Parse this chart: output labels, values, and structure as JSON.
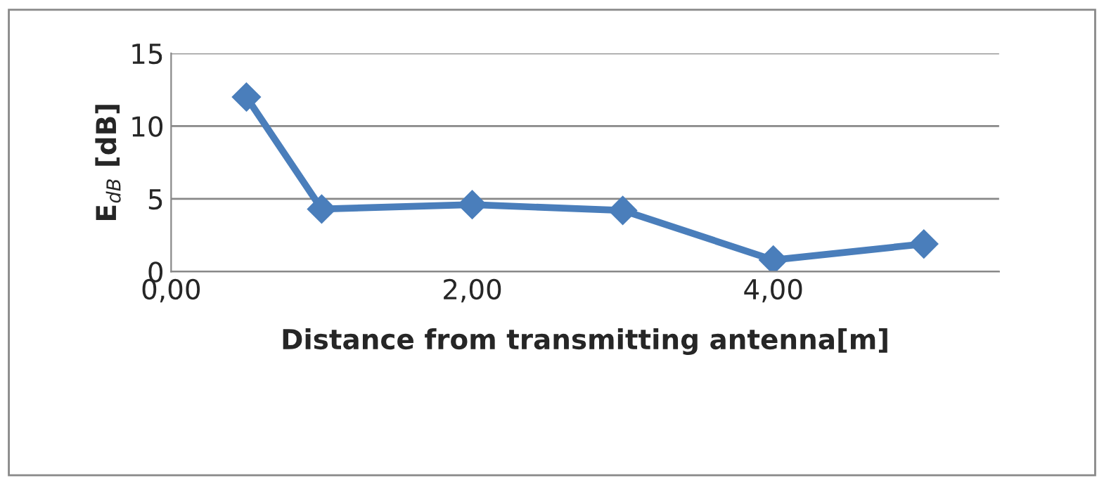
{
  "chart_data": {
    "type": "line",
    "xlabel": "Distance from transmitting antenna[m]",
    "ylabel": "E$_{dB}$ [dB]",
    "x": [
      0.5,
      1,
      2,
      3,
      4,
      5
    ],
    "series": [
      {
        "color": "#4a7ebb",
        "values": [
          12.0,
          4.3,
          4.6,
          4.2,
          0.8,
          1.9
        ]
      }
    ],
    "xlim": [
      0,
      5.5
    ],
    "xticks": [
      {
        "value": 0,
        "label": "0,00"
      },
      {
        "value": 2,
        "label": "2,00"
      },
      {
        "value": 4,
        "label": "4,00"
      }
    ],
    "ylim": [
      0,
      15
    ],
    "yticks": [
      0,
      5,
      10,
      15
    ],
    "grid": "y",
    "marker": "diamond",
    "line_style": "solid"
  }
}
